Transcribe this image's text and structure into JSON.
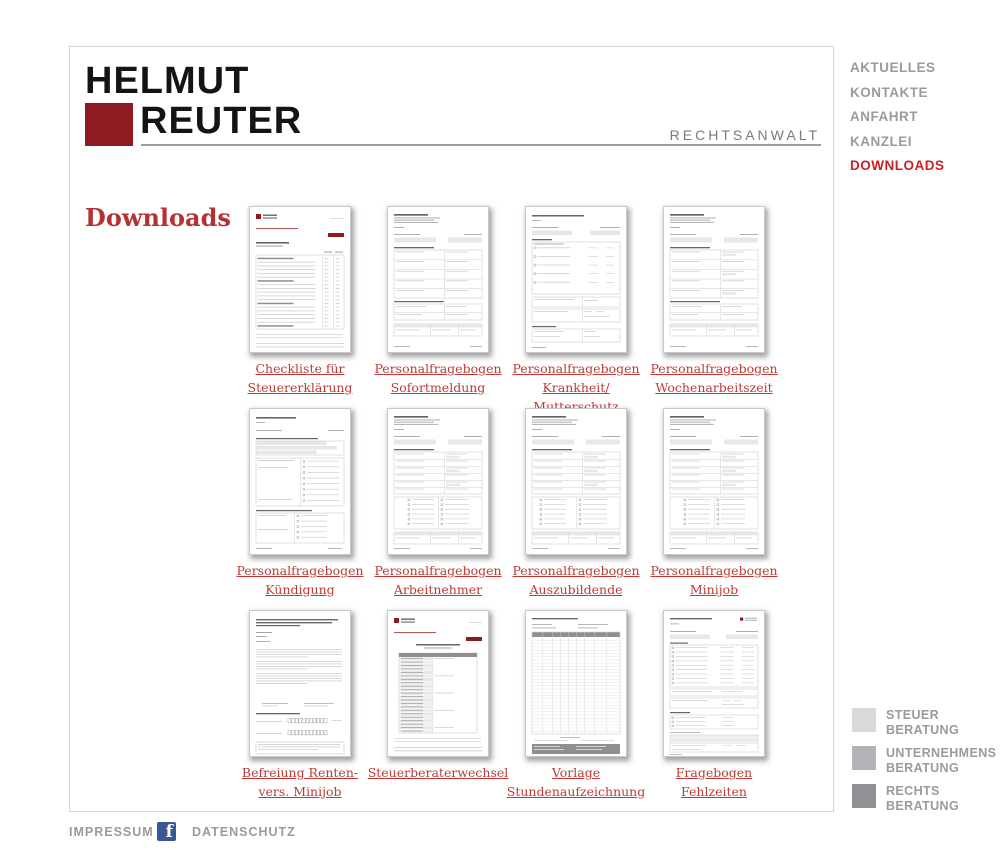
{
  "brand": {
    "line1": "HELMUT",
    "line2": "REUTER",
    "tagline": "RECHTSANWALT"
  },
  "nav": {
    "items": [
      {
        "label": "AKTUELLES",
        "active": false
      },
      {
        "label": "KONTAKTE",
        "active": false
      },
      {
        "label": "ANFAHRT",
        "active": false
      },
      {
        "label": "KANZLEI",
        "active": false
      },
      {
        "label": "DOWNLOADS",
        "active": true
      }
    ]
  },
  "page": {
    "heading": "Downloads"
  },
  "downloads": {
    "items": [
      {
        "label": "Checkliste für\nSteuererklärung"
      },
      {
        "label": "Personalfragebogen\nSofortmeldung"
      },
      {
        "label": "Personalfragebogen\nKrankheit/ Mutterschutz"
      },
      {
        "label": "Personalfragebogen\nWochenarbeitszeit"
      },
      {
        "label": "Personalfragebogen\nKündigung"
      },
      {
        "label": "Personalfragebogen\nArbeitnehmer"
      },
      {
        "label": "Personalfragebogen\nAuszubildende"
      },
      {
        "label": "Personalfragebogen\nMinijob"
      },
      {
        "label": "Befreiung Renten-\nvers. Minijob"
      },
      {
        "label": "Steuerberaterwechsel"
      },
      {
        "label": "Vorlage\nStundenaufzeichnung"
      },
      {
        "label": "Fragebogen\nFehlzeiten"
      }
    ]
  },
  "legend": {
    "items": [
      {
        "line1": "STEUER",
        "line2": "BERATUNG",
        "color": "#d8d9da"
      },
      {
        "line1": "UNTERNEHMENS",
        "line2": "BERATUNG",
        "color": "#b1b3b6"
      },
      {
        "line1": "RECHTS",
        "line2": "BERATUNG",
        "color": "#8f9194"
      }
    ]
  },
  "footer": {
    "impressum": "IMPRESSUM",
    "datenschutz": "DATENSCHUTZ",
    "facebook_glyph": "f"
  },
  "colors": {
    "brand_red": "#8e1b22",
    "nav_active_red": "#cb2026",
    "link_red": "#bf3a35",
    "facebook_blue": "#3a5795"
  }
}
